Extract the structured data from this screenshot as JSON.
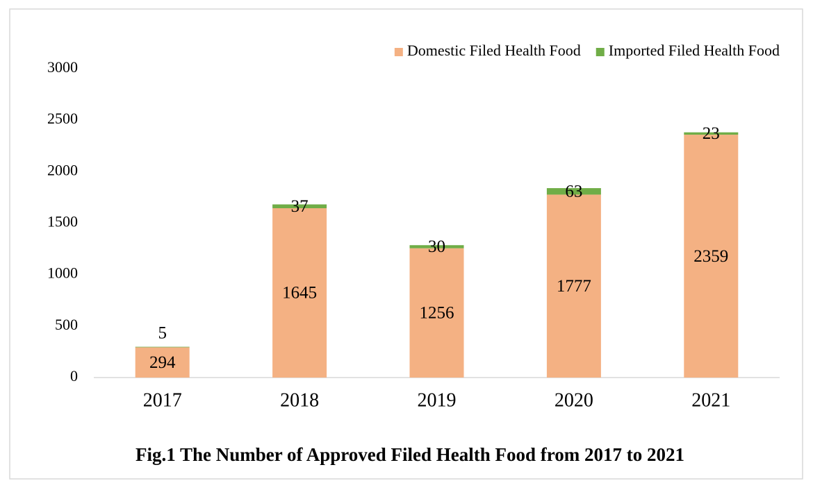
{
  "chart_data": {
    "type": "stacked_bar",
    "title": "Fig.1  The Number of Approved Filed Health Food from 2017 to 2021",
    "categories": [
      "2017",
      "2018",
      "2019",
      "2020",
      "2021"
    ],
    "series": [
      {
        "name": "Domestic Filed Health Food",
        "color": "#f4b183",
        "values": [
          294,
          1645,
          1256,
          1777,
          2359
        ]
      },
      {
        "name": "Imported Filed Health Food",
        "color": "#70ad47",
        "values": [
          5,
          37,
          30,
          63,
          23
        ]
      }
    ],
    "ylim": [
      0,
      3000
    ],
    "yticks": [
      0,
      500,
      1000,
      1500,
      2000,
      2500,
      3000
    ],
    "legend": "top-right",
    "grid": false
  }
}
